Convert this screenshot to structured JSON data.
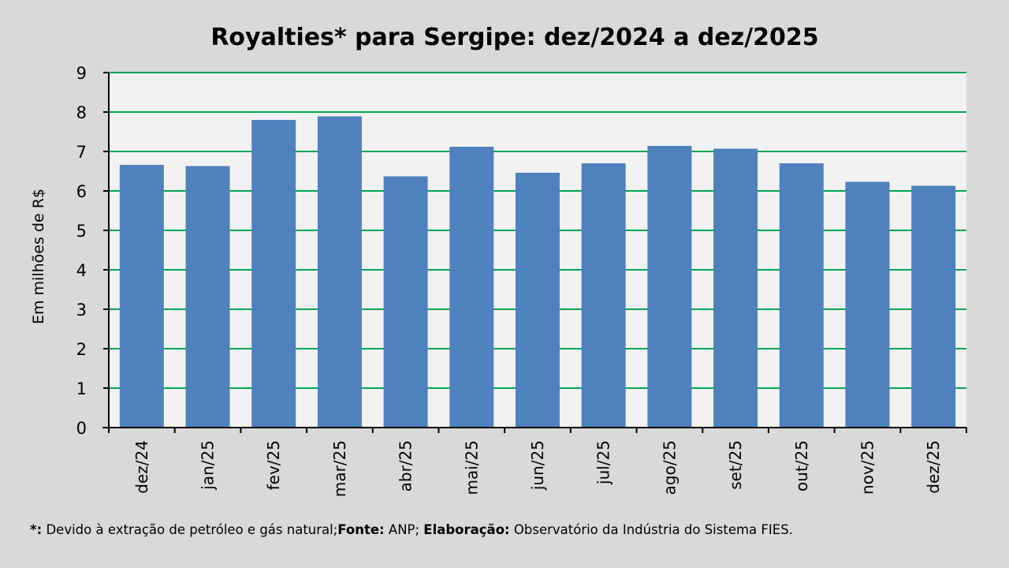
{
  "chart_data": {
    "type": "bar",
    "title": "Royalties* para Sergipe: dez/2024 a dez/2025",
    "ylabel": "Em milhões de R$",
    "xlabel": "",
    "ylim": [
      0,
      9
    ],
    "yticks": [
      "0",
      "1",
      "2",
      "3",
      "4",
      "5",
      "6",
      "7",
      "8",
      "9"
    ],
    "grid": true,
    "categories": [
      "dez/24",
      "jan/25",
      "fev/25",
      "mar/25",
      "abr/25",
      "mai/25",
      "jun/25",
      "jul/25",
      "ago/25",
      "set/25",
      "out/25",
      "nov/25",
      "dez/25"
    ],
    "values": [
      6.66,
      6.63,
      7.8,
      7.89,
      6.37,
      7.12,
      6.46,
      6.7,
      7.14,
      7.07,
      6.7,
      6.23,
      6.13
    ]
  },
  "colors": {
    "bar": "#4f81bd",
    "grid": "#00a650",
    "plot_background": "#f2f2f2",
    "page_background": "#d9d9d9"
  },
  "footnote": {
    "star_label": "*:",
    "star_text": " Devido à extração de petróleo e gás natural;",
    "source_label": "Fonte:",
    "source_text": " ANP; ",
    "credit_label": "Elaboração:",
    "credit_text": " Observatório da Indústria do Sistema FIES."
  }
}
